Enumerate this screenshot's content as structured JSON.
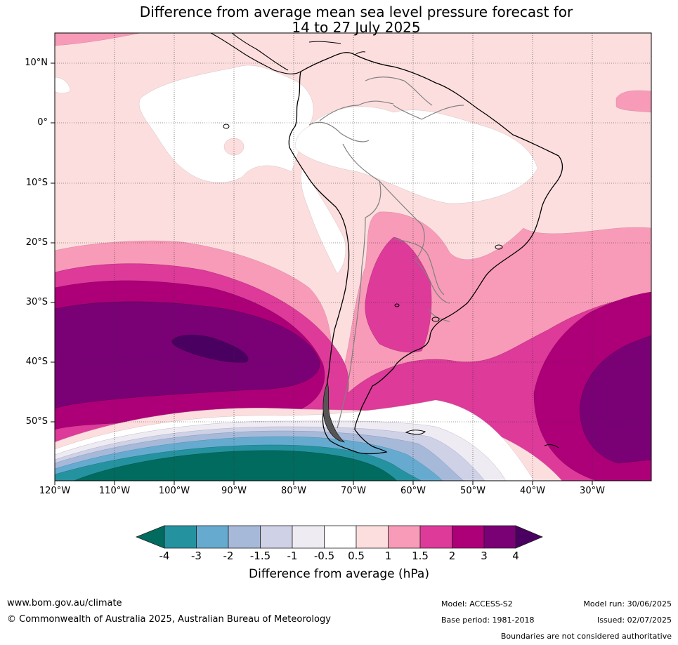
{
  "title_line1": "Difference from average mean sea level pressure forecast for",
  "title_line2": "14 to 27 July 2025",
  "lat_labels": [
    "10°N",
    "0°",
    "10°S",
    "20°S",
    "30°S",
    "40°S",
    "50°S"
  ],
  "lon_labels": [
    "120°W",
    "110°W",
    "100°W",
    "90°W",
    "80°W",
    "70°W",
    "60°W",
    "50°W",
    "40°W",
    "30°W"
  ],
  "colorbar": {
    "ticks": [
      "-4",
      "-3",
      "-2",
      "-1.5",
      "-1",
      "-0.5",
      "0.5",
      "1",
      "1.5",
      "2",
      "3",
      "4"
    ],
    "colors": [
      "#006b5e",
      "#2592a0",
      "#66abcf",
      "#a7b9d8",
      "#cfd1e6",
      "#efebf2",
      "#ffffff",
      "#fddede",
      "#f89bb8",
      "#dd3a9a",
      "#ad0078",
      "#7a0075",
      "#4a0060"
    ],
    "title": "Difference from average (hPa)"
  },
  "map": {
    "region": "South America and surrounding oceans",
    "ocean_background": "#fddede",
    "land_outline": "#000000",
    "border_outline": "#808080"
  },
  "footer": {
    "website": "www.bom.gov.au/climate",
    "copyright": "© Commonwealth of Australia 2025, Australian Bureau of Meteorology",
    "model": "Model: ACCESS-S2",
    "base_period": "Base period: 1981-2018",
    "model_run": "Model run: 30/06/2025",
    "issued": "Issued: 02/07/2025",
    "disclaimer": "Boundaries are not considered authoritative"
  }
}
